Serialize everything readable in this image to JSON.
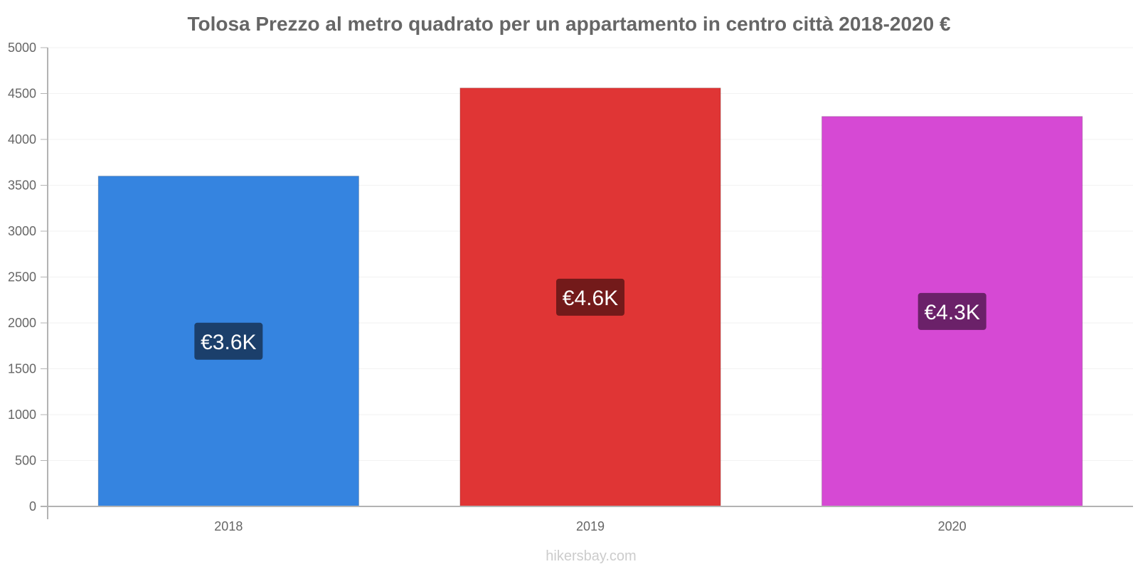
{
  "chart_data": {
    "type": "bar",
    "title": "Tolosa Prezzo al metro quadrato per un appartamento in centro città 2018-2020 €",
    "categories": [
      "2018",
      "2019",
      "2020"
    ],
    "values": [
      3600,
      4560,
      4250
    ],
    "data_labels": [
      "€3.6K",
      "€4.6K",
      "€4.3K"
    ],
    "colors": [
      "#3584e0",
      "#e03535",
      "#d649d4"
    ],
    "label_bg_colors": [
      "#1b3f6b",
      "#731a1a",
      "#6b2169"
    ],
    "xlabel": "",
    "ylabel": "",
    "ylim": [
      0,
      5000
    ],
    "yticks": [
      "0",
      "500",
      "1000",
      "1500",
      "2000",
      "2500",
      "3000",
      "3500",
      "4000",
      "4500",
      "5000"
    ],
    "grid": true,
    "legend": "none"
  },
  "footer": {
    "source": "hikersbay.com"
  }
}
